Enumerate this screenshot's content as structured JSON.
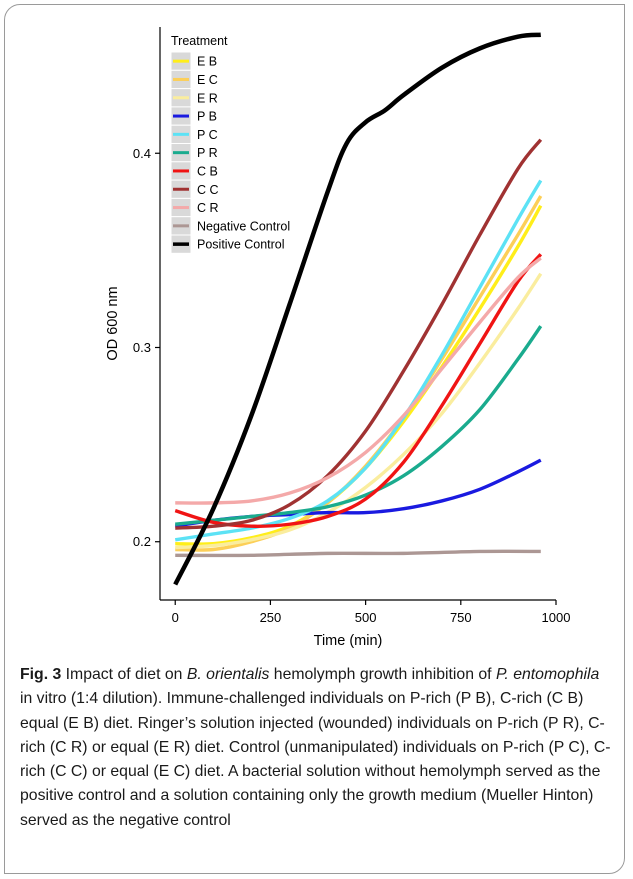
{
  "chart_data": {
    "type": "line",
    "xlabel": "Time (min)",
    "ylabel": "OD 600 nm",
    "xlim": [
      -40,
      1000
    ],
    "ylim": [
      0.17,
      0.465
    ],
    "xticks": [
      0,
      250,
      500,
      750,
      1000
    ],
    "yticks": [
      0.2,
      0.3,
      0.4
    ],
    "ytick_labels": [
      "0.2",
      "0.3",
      "0.4"
    ],
    "grid": false,
    "legend": {
      "title": "Treatment",
      "placement": "top-left"
    },
    "series": [
      {
        "name": "E B",
        "color": "#ffee1a",
        "x": [
          0,
          100,
          200,
          300,
          400,
          500,
          600,
          700,
          800,
          900,
          960
        ],
        "y": [
          0.199,
          0.199,
          0.202,
          0.208,
          0.22,
          0.238,
          0.262,
          0.29,
          0.32,
          0.352,
          0.373
        ]
      },
      {
        "name": "E C",
        "color": "#fccf58",
        "x": [
          0,
          100,
          200,
          300,
          400,
          500,
          600,
          700,
          800,
          900,
          960
        ],
        "y": [
          0.196,
          0.196,
          0.2,
          0.207,
          0.22,
          0.239,
          0.264,
          0.294,
          0.326,
          0.358,
          0.378
        ]
      },
      {
        "name": "E R",
        "color": "#faed9e",
        "x": [
          0,
          100,
          200,
          300,
          400,
          500,
          600,
          700,
          800,
          900,
          960
        ],
        "y": [
          0.197,
          0.198,
          0.201,
          0.206,
          0.215,
          0.228,
          0.245,
          0.266,
          0.292,
          0.32,
          0.338
        ]
      },
      {
        "name": "P B",
        "color": "#1a1ae0",
        "x": [
          0,
          100,
          200,
          300,
          400,
          500,
          600,
          700,
          800,
          900,
          960
        ],
        "y": [
          0.208,
          0.211,
          0.213,
          0.214,
          0.215,
          0.215,
          0.217,
          0.221,
          0.227,
          0.236,
          0.242
        ]
      },
      {
        "name": "P C",
        "color": "#5ce2f5",
        "x": [
          0,
          100,
          200,
          300,
          400,
          500,
          600,
          700,
          800,
          900,
          960
        ],
        "y": [
          0.201,
          0.204,
          0.207,
          0.212,
          0.221,
          0.238,
          0.264,
          0.296,
          0.331,
          0.366,
          0.386
        ]
      },
      {
        "name": "P R",
        "color": "#1aab8e",
        "x": [
          0,
          100,
          200,
          300,
          400,
          500,
          600,
          700,
          800,
          900,
          960
        ],
        "y": [
          0.209,
          0.211,
          0.213,
          0.215,
          0.218,
          0.224,
          0.234,
          0.249,
          0.268,
          0.294,
          0.311
        ]
      },
      {
        "name": "C B",
        "color": "#f01414",
        "x": [
          0,
          100,
          200,
          300,
          400,
          500,
          600,
          700,
          800,
          900,
          960
        ],
        "y": [
          0.216,
          0.21,
          0.208,
          0.209,
          0.213,
          0.222,
          0.241,
          0.27,
          0.302,
          0.334,
          0.348
        ]
      },
      {
        "name": "C C",
        "color": "#a03232",
        "x": [
          0,
          100,
          200,
          300,
          400,
          500,
          600,
          700,
          800,
          900,
          960
        ],
        "y": [
          0.207,
          0.208,
          0.211,
          0.219,
          0.234,
          0.257,
          0.288,
          0.322,
          0.358,
          0.392,
          0.407
        ]
      },
      {
        "name": "C R",
        "color": "#f4a9a9",
        "x": [
          0,
          100,
          200,
          300,
          400,
          500,
          600,
          700,
          800,
          900,
          960
        ],
        "y": [
          0.22,
          0.22,
          0.221,
          0.225,
          0.233,
          0.246,
          0.265,
          0.289,
          0.313,
          0.336,
          0.346
        ]
      },
      {
        "name": "Negative Control",
        "color": "#ac9794",
        "x": [
          0,
          200,
          400,
          600,
          800,
          960
        ],
        "y": [
          0.193,
          0.193,
          0.194,
          0.194,
          0.195,
          0.195
        ]
      },
      {
        "name": "Positive Control",
        "color": "#000000",
        "x": [
          0,
          100,
          200,
          300,
          400,
          450,
          500,
          550,
          600,
          700,
          800,
          900,
          960
        ],
        "y": [
          0.178,
          0.217,
          0.265,
          0.322,
          0.38,
          0.405,
          0.416,
          0.422,
          0.43,
          0.444,
          0.454,
          0.46,
          0.461
        ]
      }
    ]
  },
  "caption": {
    "label": "Fig. 3",
    "parts": [
      {
        "t": "  Impact of diet on ",
        "i": false
      },
      {
        "t": "B. orientalis",
        "i": true
      },
      {
        "t": " hemolymph growth inhibition of ",
        "i": false
      },
      {
        "t": "P. entomophila",
        "i": true
      },
      {
        "t": " in vitro (1:4 dilution). Immune-challenged individuals on P-rich (P B), C-rich (C B) equal (E B) diet. Ringer’s solution injected (wounded) individuals on P-rich (P R), C-rich (C R) or equal (E R) diet. Control (unmanipulated) individuals on P-rich (P C), C-rich (C C) or equal (E C) diet. A bacterial solution without hemolymph served as the positive control and a solution containing only the growth medium (Mueller Hinton) served as the negative control",
        "i": false
      }
    ]
  }
}
